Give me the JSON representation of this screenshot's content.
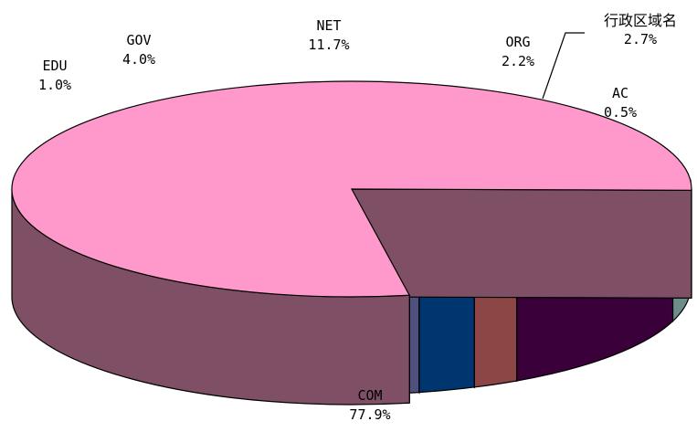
{
  "chart_data": {
    "type": "pie",
    "style": "3d-exploded",
    "total_percent_labels": true,
    "slices": [
      {
        "label": "COM",
        "value": 77.9,
        "display": "77.9%",
        "color": "#ff99cc",
        "side_color": "#7f4f66"
      },
      {
        "label": "EDU",
        "value": 1.0,
        "display": "1.0%",
        "color": "#ffffcc",
        "side_color": "#8c8c70"
      },
      {
        "label": "GOV",
        "value": 4.0,
        "display": "4.0%",
        "color": "#ccffff",
        "side_color": "#6f8c8c"
      },
      {
        "label": "NET",
        "value": 11.7,
        "display": "11.7%",
        "color": "#660066",
        "side_color": "#3a003a"
      },
      {
        "label": "ORG",
        "value": 2.2,
        "display": "2.2%",
        "color": "#ff8080",
        "side_color": "#8c4646"
      },
      {
        "label": "行政区域名",
        "value": 2.7,
        "display": "2.7%",
        "color": "#0066cc",
        "side_color": "#003670"
      },
      {
        "label": "AC",
        "value": 0.5,
        "display": "0.5%",
        "color": "#ccccff",
        "side_color": "#50507f"
      }
    ]
  }
}
